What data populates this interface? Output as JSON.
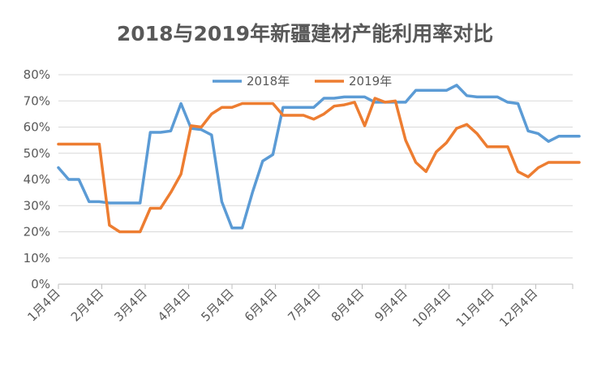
{
  "chart_data": {
    "type": "line",
    "title": "2018与2019年新疆建材产能利用率对比",
    "xlabel": "",
    "ylabel": "",
    "ylim": [
      0,
      80
    ],
    "y_ticks": [
      "0%",
      "10%",
      "20%",
      "30%",
      "40%",
      "50%",
      "60%",
      "70%",
      "80%"
    ],
    "x_ticks": [
      "1月4日",
      "2月4日",
      "3月4日",
      "4月4日",
      "5月4日",
      "6月4日",
      "7月4日",
      "8月4日",
      "9月4日",
      "10月4日",
      "11月4日",
      "12月4日"
    ],
    "x_points_per_month": 4.25,
    "grid": "horizontal",
    "legend_position": "top",
    "series": [
      {
        "name": "2018年",
        "color": "#5B9BD5",
        "values": [
          44.5,
          40,
          40,
          31.5,
          31.5,
          31,
          31,
          31,
          31,
          58,
          58,
          58.5,
          69,
          59.5,
          59,
          57,
          31.5,
          21.5,
          21.5,
          35,
          47,
          49.5,
          67.5,
          67.5,
          67.5,
          67.5,
          71,
          71,
          71.5,
          71.5,
          71.5,
          69.5,
          69.5,
          69.5,
          69.5,
          74,
          74,
          74,
          74,
          76,
          72,
          71.5,
          71.5,
          71.5,
          69.5,
          69,
          58.5,
          57.5,
          54.5,
          56.5,
          56.5,
          56.5
        ]
      },
      {
        "name": "2019年",
        "color": "#ED7D31",
        "values": [
          53.5,
          53.5,
          53.5,
          53.5,
          53.5,
          22.5,
          20,
          20,
          20,
          29,
          29,
          35,
          42,
          60.5,
          60,
          65,
          67.5,
          67.5,
          69,
          69,
          69,
          69,
          64.5,
          64.5,
          64.5,
          63,
          65,
          68,
          68.5,
          69.5,
          60.5,
          71,
          69.5,
          70,
          55,
          46.5,
          43,
          50.5,
          54,
          59.5,
          61,
          57.5,
          52.5,
          52.5,
          52.5,
          43,
          41,
          44.5,
          46.5,
          46.5,
          46.5,
          46.5
        ]
      }
    ]
  }
}
